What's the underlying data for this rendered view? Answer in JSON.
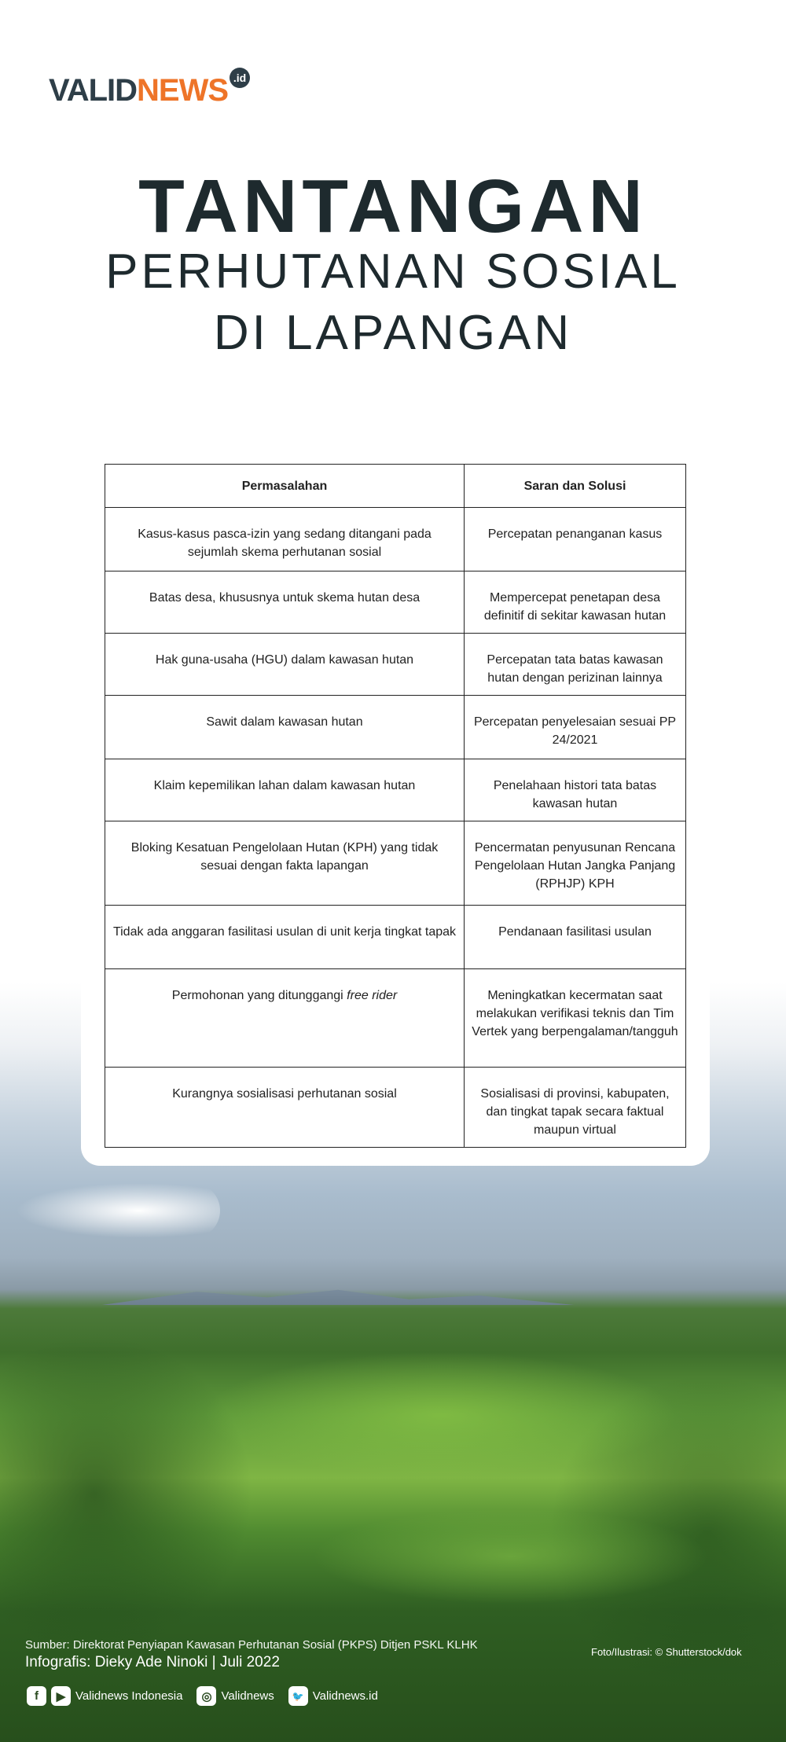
{
  "logo": {
    "text_a": "VALID",
    "text_b": "NEWS",
    "suffix": ".id",
    "colors": {
      "dark": "#2e3e48",
      "orange": "#ee7428"
    }
  },
  "title": {
    "line1": "TANTANGAN",
    "line2": "PERHUTANAN SOSIAL",
    "line3": "DI LAPANGAN"
  },
  "table": {
    "headers": [
      "Permasalahan",
      "Saran dan Solusi"
    ],
    "rows": [
      [
        "Kasus-kasus pasca-izin yang sedang ditangani pada sejumlah skema perhutanan sosial",
        "Percepatan penanganan kasus"
      ],
      [
        "Batas desa, khususnya untuk skema hutan desa",
        "Mempercepat penetapan desa definitif di sekitar kawasan hutan"
      ],
      [
        "Hak guna-usaha (HGU) dalam kawasan hutan",
        "Percepatan tata batas kawasan hutan dengan perizinan lainnya"
      ],
      [
        "Sawit dalam kawasan hutan",
        "Percepatan penyelesaian sesuai PP 24/2021"
      ],
      [
        "Klaim kepemilikan lahan dalam kawasan hutan",
        "Penelahaan histori tata batas kawasan hutan"
      ],
      [
        "Bloking Kesatuan Pengelolaan Hutan (KPH) yang tidak sesuai dengan fakta lapangan",
        "Pencermatan penyusunan Rencana Pengelolaan Hutan Jangka Panjang (RPHJP) KPH"
      ],
      [
        "Tidak ada anggaran fasilitasi usulan di unit kerja tingkat tapak",
        "Pendanaan fasilitasi usulan"
      ],
      [
        "Permohonan yang ditunggangi ",
        "Meningkatkan kecermatan saat melakukan verifikasi teknis dan Tim Vertek yang berpengalaman/tangguh"
      ],
      [
        "Kurangnya sosialisasi perhutanan sosial",
        "Sosialisasi di provinsi, kabupaten, dan tingkat tapak secara faktual maupun virtual"
      ]
    ],
    "italic_suffix": "free rider"
  },
  "footer": {
    "source": "Sumber: Direktorat Penyiapan Kawasan Perhutanan Sosial (PKPS) Ditjen PSKL KLHK",
    "infographic": "Infografis: Dieky Ade Ninoki | Juli 2022",
    "photo": "Foto/Ilustrasi: © Shutterstock/dok",
    "social": [
      {
        "icon": "facebook-icon",
        "glyph": "f"
      },
      {
        "icon": "youtube-icon",
        "glyph": "▶"
      },
      {
        "label": "Validnews Indonesia"
      },
      {
        "icon": "instagram-icon",
        "glyph": "◎"
      },
      {
        "label": "Validnews"
      },
      {
        "icon": "twitter-icon",
        "glyph": "🐦"
      },
      {
        "label": "Validnews.id"
      }
    ]
  }
}
